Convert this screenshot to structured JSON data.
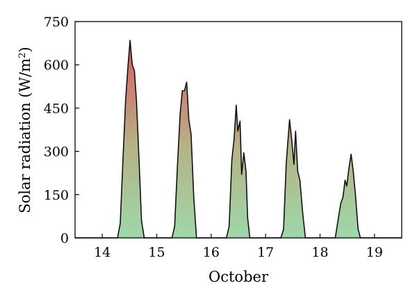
{
  "chart_data": {
    "type": "area",
    "xlabel": "October",
    "ylabel": "Solar radiation (W/m",
    "ylabel_superscript": "2",
    "ylabel_suffix": ")",
    "xlim": [
      13.5,
      19.5
    ],
    "ylim": [
      0,
      750
    ],
    "x_ticks": [
      14,
      15,
      16,
      17,
      18,
      19
    ],
    "y_ticks": [
      0,
      150,
      300,
      450,
      600,
      750
    ],
    "grid": false,
    "fill_gradient": {
      "high": "#dc5a64",
      "mid": "#b4b487",
      "low": "#9ed7aa"
    },
    "line_color": "#111111",
    "series": [
      {
        "values": [
          [
            13.5,
            0
          ],
          [
            14.28,
            0
          ],
          [
            14.33,
            50
          ],
          [
            14.38,
            270
          ],
          [
            14.43,
            480
          ],
          [
            14.47,
            590
          ],
          [
            14.51,
            685
          ],
          [
            14.55,
            600
          ],
          [
            14.59,
            580
          ],
          [
            14.63,
            470
          ],
          [
            14.68,
            250
          ],
          [
            14.72,
            60
          ],
          [
            14.77,
            0
          ],
          [
            15.28,
            0
          ],
          [
            15.33,
            40
          ],
          [
            15.38,
            250
          ],
          [
            15.43,
            430
          ],
          [
            15.47,
            510
          ],
          [
            15.51,
            510
          ],
          [
            15.55,
            540
          ],
          [
            15.59,
            410
          ],
          [
            15.63,
            360
          ],
          [
            15.68,
            140
          ],
          [
            15.73,
            0
          ],
          [
            16.28,
            0
          ],
          [
            16.33,
            40
          ],
          [
            16.38,
            270
          ],
          [
            16.42,
            340
          ],
          [
            16.46,
            460
          ],
          [
            16.49,
            370
          ],
          [
            16.53,
            405
          ],
          [
            16.56,
            220
          ],
          [
            16.6,
            295
          ],
          [
            16.64,
            230
          ],
          [
            16.67,
            70
          ],
          [
            16.71,
            0
          ],
          [
            17.28,
            0
          ],
          [
            17.33,
            30
          ],
          [
            17.38,
            260
          ],
          [
            17.44,
            410
          ],
          [
            17.48,
            340
          ],
          [
            17.52,
            255
          ],
          [
            17.55,
            370
          ],
          [
            17.59,
            230
          ],
          [
            17.63,
            200
          ],
          [
            17.68,
            90
          ],
          [
            17.73,
            0
          ],
          [
            18.28,
            0
          ],
          [
            18.33,
            60
          ],
          [
            18.38,
            120
          ],
          [
            18.42,
            140
          ],
          [
            18.46,
            200
          ],
          [
            18.49,
            180
          ],
          [
            18.53,
            240
          ],
          [
            18.57,
            290
          ],
          [
            18.61,
            230
          ],
          [
            18.65,
            150
          ],
          [
            18.7,
            30
          ],
          [
            18.74,
            0
          ],
          [
            19.5,
            0
          ]
        ]
      }
    ]
  }
}
